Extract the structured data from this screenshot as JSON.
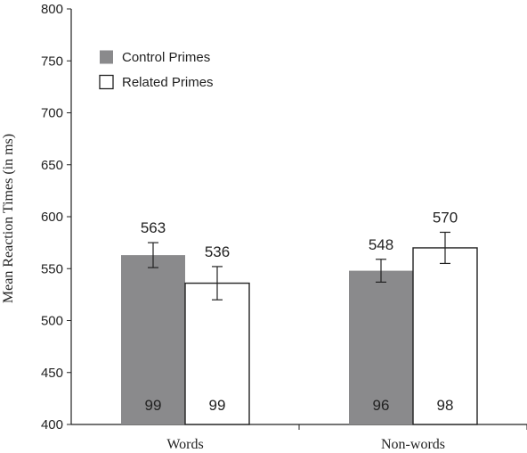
{
  "chart_data": {
    "type": "bar",
    "ylabel": "Mean Reaction Times (in ms)",
    "xlabel": "",
    "ylim": [
      400,
      800
    ],
    "yticks": [
      400,
      450,
      500,
      550,
      600,
      650,
      700,
      750,
      800
    ],
    "categories": [
      "Words",
      "Non-words"
    ],
    "legend_position": "top-left",
    "grid": false,
    "series": [
      {
        "name": "Control Primes",
        "color": "#8a8a8c",
        "values": [
          563,
          548
        ],
        "value_labels": [
          "563",
          "548"
        ],
        "error": [
          12,
          11
        ],
        "n_labels": [
          "99",
          "96"
        ]
      },
      {
        "name": "Related Primes",
        "color": "#ffffff",
        "values": [
          536,
          570
        ],
        "value_labels": [
          "536",
          "570"
        ],
        "error": [
          16,
          15
        ],
        "n_labels": [
          "99",
          "98"
        ]
      }
    ]
  }
}
